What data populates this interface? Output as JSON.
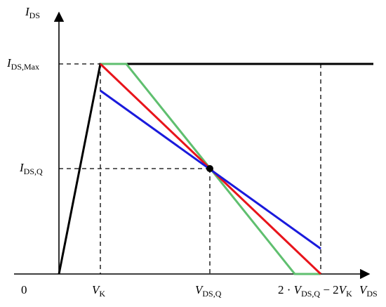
{
  "diagram": {
    "axes": {
      "y_axis_var": "I",
      "y_axis_sub": "DS",
      "x_axis_var": "V",
      "x_axis_sub": "DS"
    },
    "labels": {
      "origin": "0",
      "vk_var": "V",
      "vk_sub": "K",
      "vdsq_var": "V",
      "vdsq_sub": "DS,Q",
      "right_prefix": "2 · ",
      "right_v1": "V",
      "right_s1": "DS,Q",
      "right_mid": " − 2",
      "right_v2": "V",
      "right_s2": "K",
      "idsmax_var": "I",
      "idsmax_sub": "DS,Max",
      "idsq_var": "I",
      "idsq_sub": "DS,Q"
    },
    "colors": {
      "axis": "#000000",
      "black_curve": "#000000",
      "red_line": "#e8141b",
      "blue_line": "#1a1adc",
      "green_line": "#5fbf6f",
      "dashed": "#000000"
    }
  }
}
